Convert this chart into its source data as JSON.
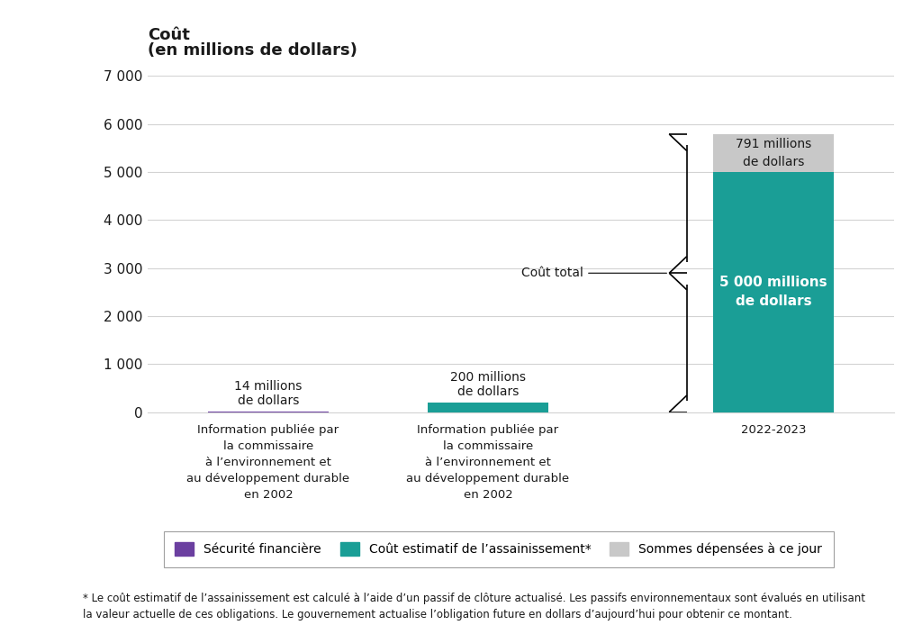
{
  "title_line1": "Coût",
  "title_line2": "(en millions de dollars)",
  "categories": [
    "Information publiée par\nla commissaire\nà l’environnement et\nau développement durable\nen 2002",
    "Information publiée par\nla commissaire\nà l’environnement et\nau développement durable\nen 2002",
    "2022-2023"
  ],
  "bar1_value": 14,
  "bar1_color": "#6b3fa0",
  "bar2_value": 200,
  "bar2_color": "#1a9e96",
  "bar3_teal": 5000,
  "bar3_gray": 791,
  "bar3_teal_color": "#1a9e96",
  "bar3_gray_color": "#c8c8c8",
  "bar1_label": "14 millions\nde dollars",
  "bar2_label": "200 millions\nde dollars",
  "bar3_teal_label": "5 000 millions\nde dollars",
  "bar3_gray_label": "791 millions\nde dollars",
  "cout_total_label": "Coût total",
  "ylim": [
    0,
    7000
  ],
  "yticks": [
    0,
    1000,
    2000,
    3000,
    4000,
    5000,
    6000,
    7000
  ],
  "ytick_labels": [
    "0",
    "1 000",
    "2 000",
    "3 000",
    "4 000",
    "5 000",
    "6 000",
    "7 000"
  ],
  "legend_items": [
    {
      "label": "Sécurité financière",
      "color": "#6b3fa0"
    },
    {
      "label": "Coût estimatif de l’assainissement*",
      "color": "#1a9e96"
    },
    {
      "label": "Sommes dépensées à ce jour",
      "color": "#c8c8c8"
    }
  ],
  "footnote": "* Le coût estimatif de l’assainissement est calculé à l’aide d’un passif de clôture actualisé. Les passifs environnementaux sont évalués en utilisant\nla valeur actuelle de ces obligations. Le gouvernement actualise l’obligation future en dollars d’aujourd’hui pour obtenir ce montant.",
  "background_color": "#ffffff",
  "grid_color": "#d3d3d3",
  "text_color": "#1a1a1a",
  "bar_width": 0.55,
  "positions": [
    0,
    1,
    2.3
  ]
}
